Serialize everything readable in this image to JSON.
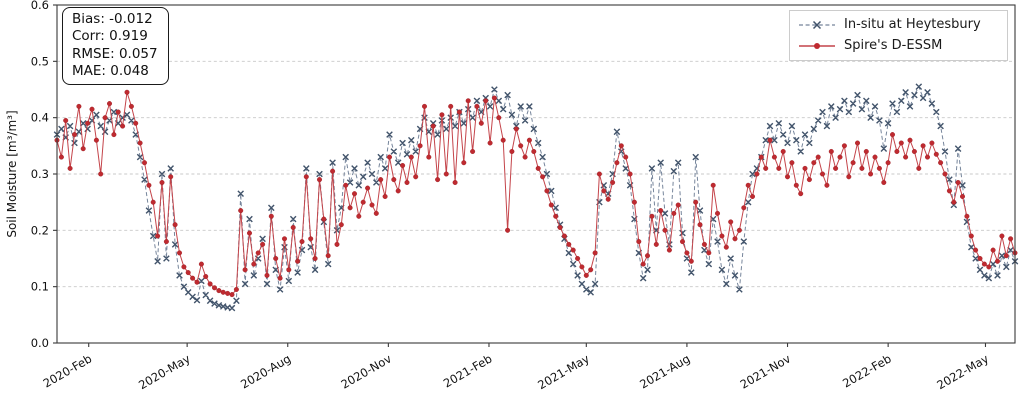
{
  "figure": {
    "kind": "matplotlib-timeseries",
    "background": "#ffffff"
  },
  "stats_box": {
    "lines": [
      "Bias: -0.012",
      "Corr: 0.919",
      "RMSE: 0.057",
      "MAE: 0.048"
    ]
  },
  "chart_data": {
    "type": "line",
    "title": "",
    "xlabel": "",
    "ylabel": "Soil Moisture [m³/m³]",
    "ylim": [
      0.0,
      0.6
    ],
    "y_ticks": [
      0.0,
      0.1,
      0.2,
      0.3,
      0.4,
      0.5,
      0.6
    ],
    "grid": "horizontal-dashed",
    "grid_color": "#c9c9c9",
    "axis_color": "#3a3a3a",
    "legend_position": "upper-right",
    "x_start_date": "2020-01-03",
    "x_step_days": 4,
    "x_total_days": 876,
    "x_ticks": [
      {
        "day": 29,
        "label": "2020-Feb"
      },
      {
        "day": 119,
        "label": "2020-May"
      },
      {
        "day": 211,
        "label": "2020-Aug"
      },
      {
        "day": 303,
        "label": "2020-Nov"
      },
      {
        "day": 395,
        "label": "2021-Feb"
      },
      {
        "day": 484,
        "label": "2021-May"
      },
      {
        "day": 576,
        "label": "2021-Aug"
      },
      {
        "day": 668,
        "label": "2021-Nov"
      },
      {
        "day": 760,
        "label": "2022-Feb"
      },
      {
        "day": 849,
        "label": "2022-May"
      }
    ],
    "series": [
      {
        "name": "In-situ at Heytesbury",
        "marker": "x",
        "line_style": "dashed",
        "marker_color": "#42546b",
        "line_color": "#76859b",
        "values": [
          0.37,
          0.38,
          0.365,
          0.385,
          0.355,
          0.375,
          0.39,
          0.38,
          0.395,
          0.405,
          0.385,
          0.375,
          0.395,
          0.41,
          0.39,
          0.4,
          0.405,
          0.395,
          0.37,
          0.33,
          0.29,
          0.235,
          0.19,
          0.145,
          0.3,
          0.15,
          0.31,
          0.175,
          0.12,
          0.1,
          0.09,
          0.082,
          0.076,
          0.11,
          0.085,
          0.075,
          0.07,
          0.067,
          0.065,
          0.063,
          0.062,
          0.075,
          0.265,
          0.105,
          0.22,
          0.12,
          0.15,
          0.185,
          0.105,
          0.24,
          0.13,
          0.095,
          0.17,
          0.11,
          0.22,
          0.125,
          0.165,
          0.31,
          0.17,
          0.13,
          0.3,
          0.215,
          0.14,
          0.32,
          0.2,
          0.24,
          0.33,
          0.285,
          0.31,
          0.28,
          0.295,
          0.32,
          0.3,
          0.285,
          0.33,
          0.31,
          0.37,
          0.34,
          0.32,
          0.355,
          0.335,
          0.36,
          0.34,
          0.38,
          0.4,
          0.375,
          0.39,
          0.37,
          0.395,
          0.38,
          0.4,
          0.385,
          0.41,
          0.39,
          0.415,
          0.4,
          0.43,
          0.41,
          0.435,
          0.42,
          0.45,
          0.43,
          0.415,
          0.44,
          0.405,
          0.385,
          0.42,
          0.395,
          0.42,
          0.38,
          0.355,
          0.33,
          0.3,
          0.27,
          0.24,
          0.21,
          0.185,
          0.16,
          0.14,
          0.12,
          0.105,
          0.095,
          0.09,
          0.105,
          0.25,
          0.28,
          0.265,
          0.3,
          0.375,
          0.34,
          0.31,
          0.28,
          0.22,
          0.16,
          0.115,
          0.13,
          0.31,
          0.2,
          0.32,
          0.23,
          0.175,
          0.305,
          0.32,
          0.195,
          0.15,
          0.125,
          0.33,
          0.235,
          0.165,
          0.14,
          0.22,
          0.18,
          0.13,
          0.105,
          0.15,
          0.12,
          0.095,
          0.18,
          0.25,
          0.3,
          0.31,
          0.33,
          0.36,
          0.385,
          0.36,
          0.39,
          0.37,
          0.355,
          0.385,
          0.36,
          0.34,
          0.37,
          0.355,
          0.38,
          0.395,
          0.41,
          0.385,
          0.42,
          0.4,
          0.415,
          0.43,
          0.41,
          0.425,
          0.44,
          0.415,
          0.43,
          0.4,
          0.42,
          0.395,
          0.345,
          0.39,
          0.425,
          0.41,
          0.43,
          0.445,
          0.42,
          0.44,
          0.455,
          0.435,
          0.445,
          0.425,
          0.41,
          0.385,
          0.34,
          0.29,
          0.245,
          0.345,
          0.28,
          0.215,
          0.17,
          0.15,
          0.13,
          0.12,
          0.115,
          0.14,
          0.12,
          0.155,
          0.135,
          0.165,
          0.145
        ]
      },
      {
        "name": "Spire's D-ESSM",
        "marker": "circle",
        "line_style": "solid",
        "marker_color": "#bf2a30",
        "line_color": "#c4444a",
        "values": [
          0.36,
          0.33,
          0.395,
          0.31,
          0.37,
          0.42,
          0.345,
          0.39,
          0.415,
          0.36,
          0.3,
          0.4,
          0.425,
          0.37,
          0.41,
          0.385,
          0.445,
          0.42,
          0.39,
          0.355,
          0.32,
          0.28,
          0.25,
          0.19,
          0.285,
          0.18,
          0.295,
          0.21,
          0.16,
          0.135,
          0.125,
          0.115,
          0.108,
          0.14,
          0.118,
          0.105,
          0.098,
          0.093,
          0.09,
          0.088,
          0.086,
          0.095,
          0.235,
          0.13,
          0.195,
          0.14,
          0.16,
          0.175,
          0.12,
          0.225,
          0.15,
          0.115,
          0.185,
          0.13,
          0.205,
          0.145,
          0.18,
          0.295,
          0.185,
          0.15,
          0.29,
          0.22,
          0.155,
          0.305,
          0.175,
          0.21,
          0.28,
          0.24,
          0.265,
          0.225,
          0.25,
          0.275,
          0.245,
          0.23,
          0.29,
          0.26,
          0.33,
          0.29,
          0.27,
          0.315,
          0.285,
          0.33,
          0.295,
          0.35,
          0.42,
          0.33,
          0.385,
          0.29,
          0.405,
          0.3,
          0.42,
          0.285,
          0.41,
          0.32,
          0.43,
          0.34,
          0.42,
          0.39,
          0.43,
          0.355,
          0.435,
          0.4,
          0.36,
          0.2,
          0.34,
          0.38,
          0.35,
          0.33,
          0.36,
          0.34,
          0.31,
          0.295,
          0.27,
          0.245,
          0.225,
          0.205,
          0.19,
          0.175,
          0.165,
          0.15,
          0.135,
          0.12,
          0.13,
          0.16,
          0.3,
          0.27,
          0.255,
          0.285,
          0.32,
          0.35,
          0.33,
          0.3,
          0.25,
          0.18,
          0.14,
          0.155,
          0.225,
          0.175,
          0.235,
          0.2,
          0.165,
          0.23,
          0.245,
          0.18,
          0.16,
          0.145,
          0.25,
          0.21,
          0.175,
          0.16,
          0.28,
          0.23,
          0.19,
          0.17,
          0.215,
          0.185,
          0.2,
          0.24,
          0.28,
          0.26,
          0.3,
          0.33,
          0.31,
          0.36,
          0.33,
          0.31,
          0.34,
          0.295,
          0.32,
          0.28,
          0.265,
          0.31,
          0.29,
          0.32,
          0.33,
          0.3,
          0.28,
          0.34,
          0.31,
          0.33,
          0.35,
          0.295,
          0.32,
          0.355,
          0.31,
          0.34,
          0.3,
          0.33,
          0.31,
          0.285,
          0.32,
          0.37,
          0.34,
          0.355,
          0.33,
          0.36,
          0.34,
          0.31,
          0.35,
          0.33,
          0.355,
          0.335,
          0.32,
          0.3,
          0.27,
          0.25,
          0.285,
          0.26,
          0.225,
          0.19,
          0.165,
          0.15,
          0.14,
          0.135,
          0.165,
          0.145,
          0.19,
          0.155,
          0.185,
          0.16
        ]
      }
    ],
    "stats": {
      "bias": -0.012,
      "corr": 0.919,
      "rmse": 0.057,
      "mae": 0.048
    }
  }
}
